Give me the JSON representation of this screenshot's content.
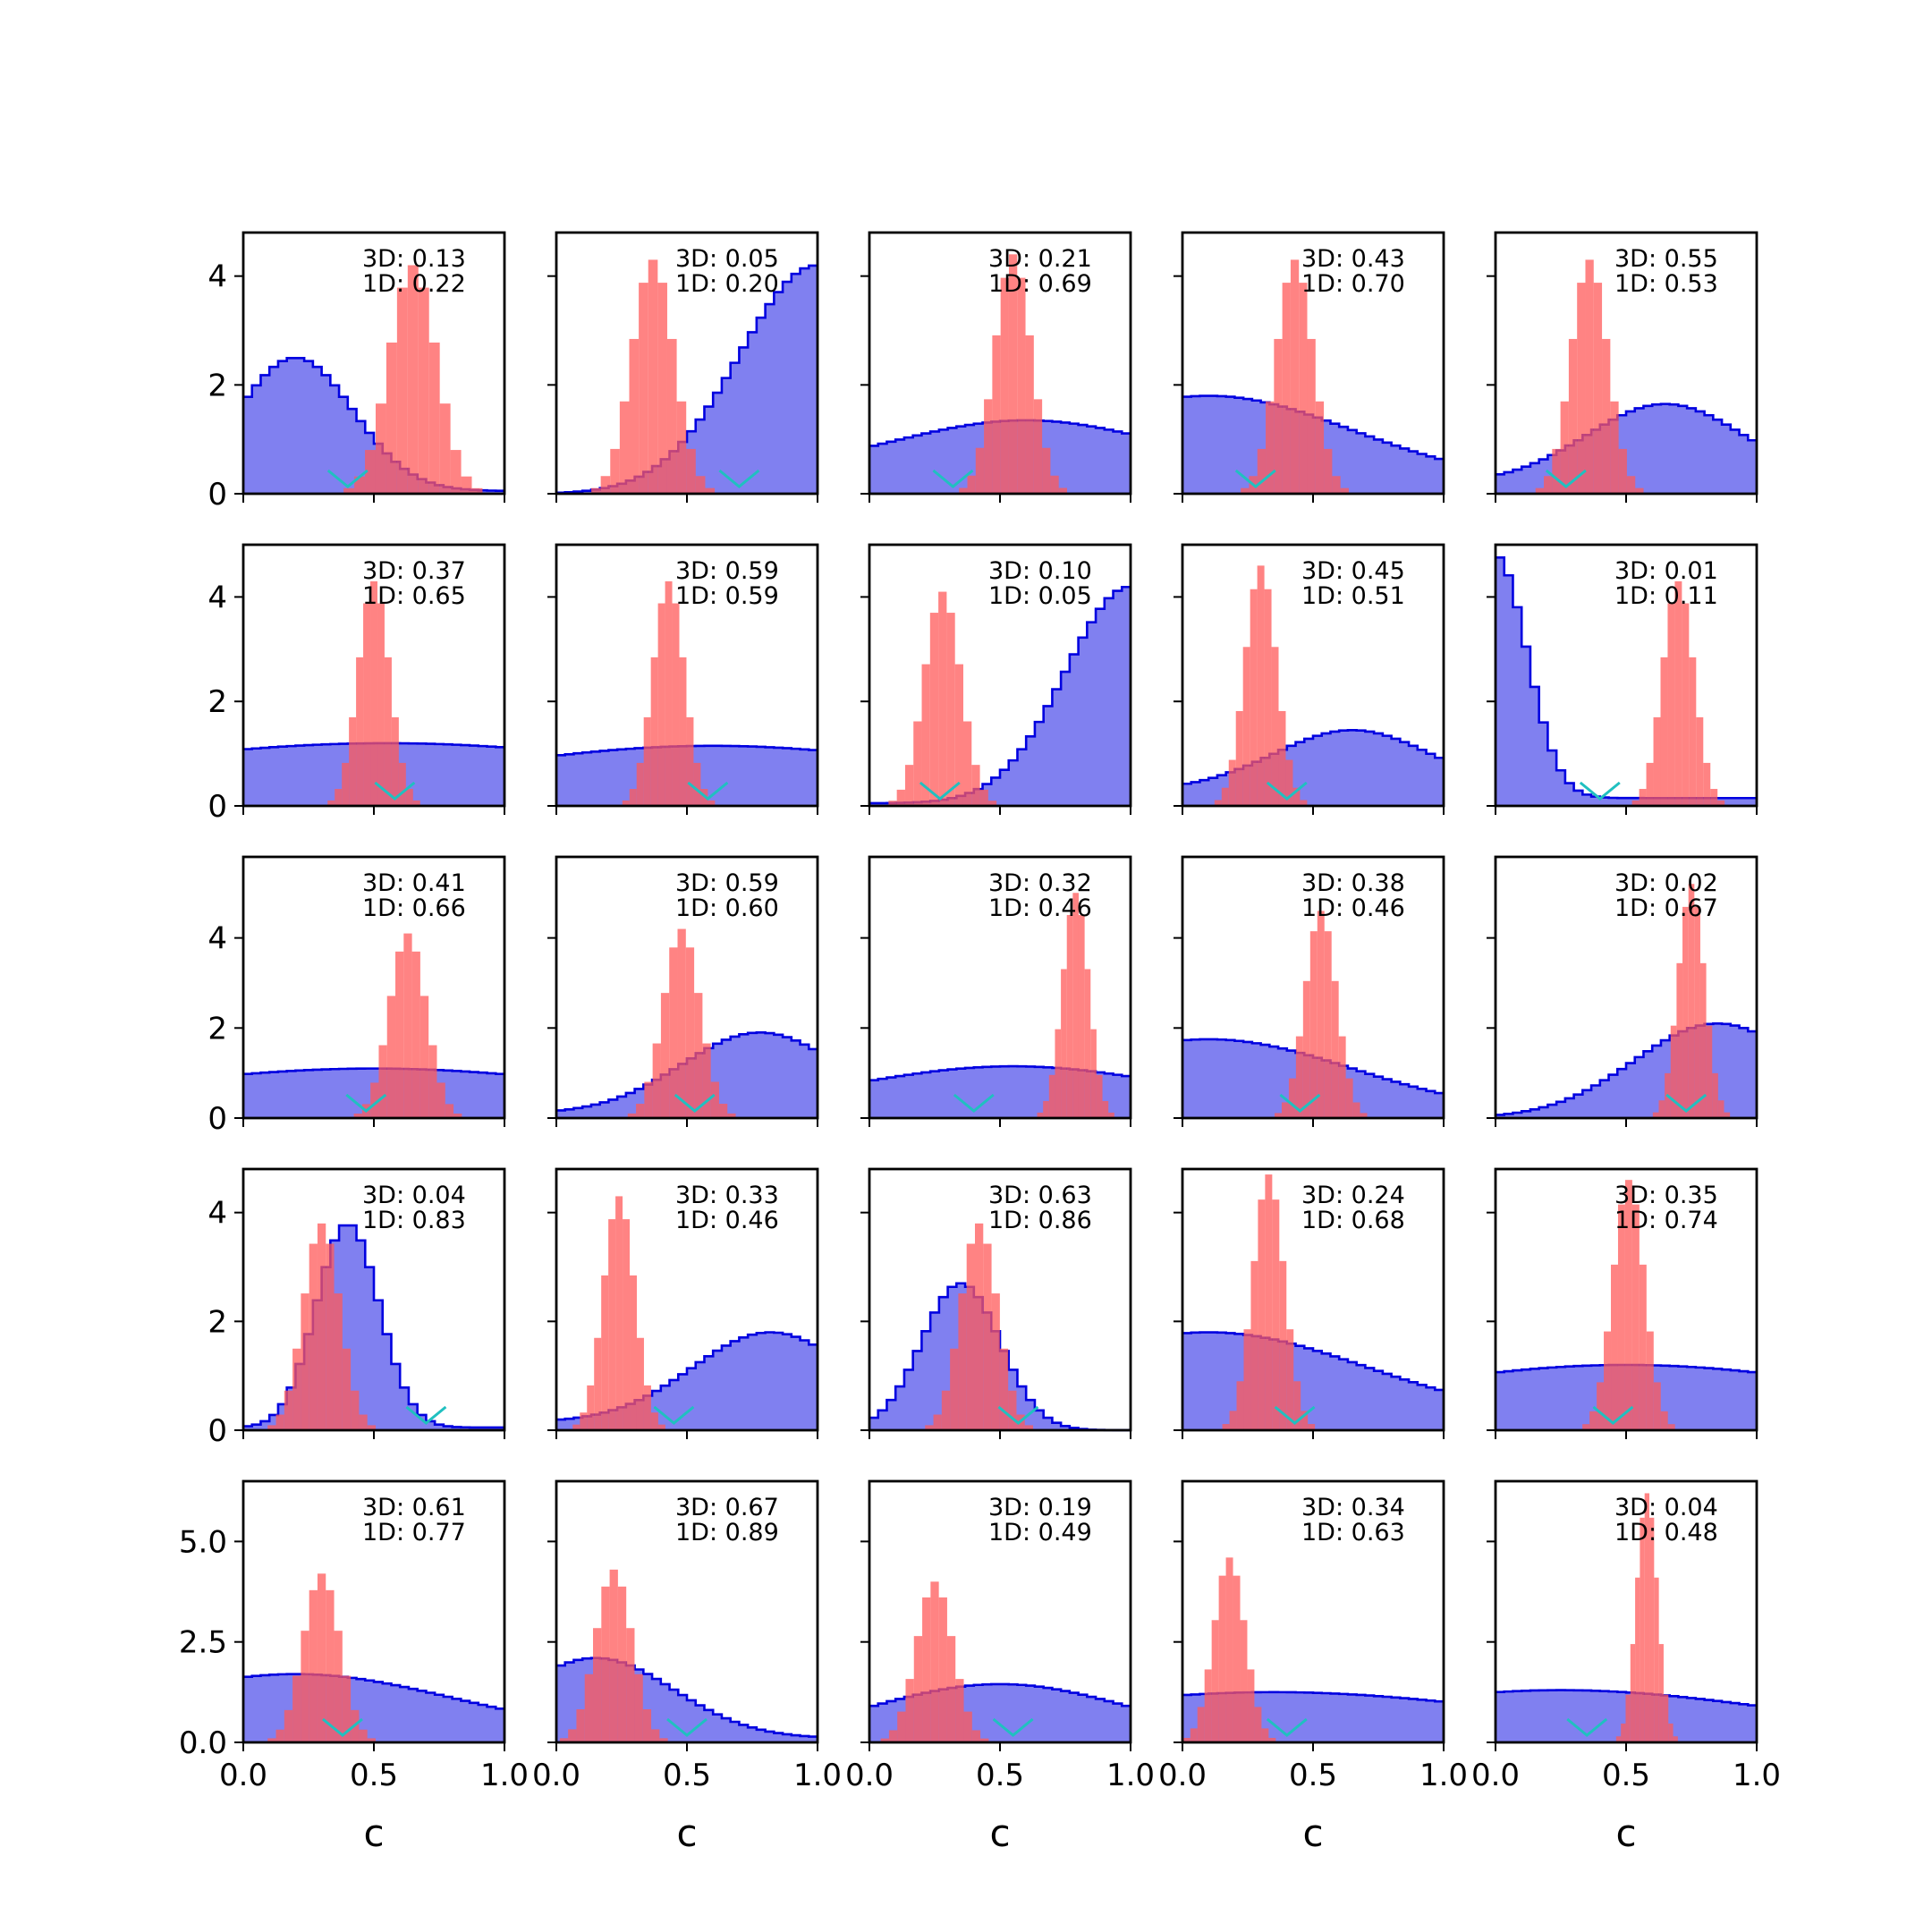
{
  "chart_data": {
    "type": "histogram-grid",
    "rows": 5,
    "cols": 5,
    "xlim": [
      0,
      1
    ],
    "xticks": [
      "0.0",
      "0.5",
      "1.0"
    ],
    "xlabel": "c",
    "row_ylim": [
      [
        0,
        4.8
      ],
      [
        0,
        5.0
      ],
      [
        0,
        5.8
      ],
      [
        0,
        4.8
      ],
      [
        0,
        6.5
      ]
    ],
    "row_yticks": [
      [
        "0",
        "2",
        "4"
      ],
      [
        "0",
        "2",
        "4"
      ],
      [
        "0",
        "2",
        "4"
      ],
      [
        "0",
        "2",
        "4"
      ],
      [
        "0.0",
        "2.5",
        "5.0"
      ]
    ],
    "row_ytick_values": [
      [
        0,
        2,
        4
      ],
      [
        0,
        2,
        4
      ],
      [
        0,
        2,
        4
      ],
      [
        0,
        2,
        4
      ],
      [
        0,
        2.5,
        5.0
      ]
    ],
    "colors": {
      "blue_fill": "#8080f0",
      "blue_line": "#0000e0",
      "red_fill": "#ff5a5a",
      "marker": "#20c0c0"
    },
    "panels": [
      {
        "label_3d": "3D: 0.13",
        "label_1d": "1D: 0.22",
        "blue": {
          "peak": 0.2,
          "width": 0.22,
          "height": 2.5,
          "base": 0.05
        },
        "red": {
          "mean": 0.65,
          "sd": 0.09,
          "height": 4.2
        },
        "marker": 0.4
      },
      {
        "label_3d": "3D: 0.05",
        "label_1d": "1D: 0.20",
        "blue": {
          "peak": 1.0,
          "width": 0.3,
          "height": 4.2,
          "base": 0.0
        },
        "red": {
          "mean": 0.37,
          "sd": 0.08,
          "height": 4.3
        },
        "marker": 0.7
      },
      {
        "label_3d": "3D: 0.21",
        "label_1d": "1D: 0.69",
        "blue": {
          "peak": 0.6,
          "width": 0.5,
          "height": 1.35,
          "base": 0.4
        },
        "red": {
          "mean": 0.55,
          "sd": 0.07,
          "height": 4.4
        },
        "marker": 0.32
      },
      {
        "label_3d": "3D: 0.43",
        "label_1d": "1D: 0.70",
        "blue": {
          "peak": 0.1,
          "width": 0.55,
          "height": 1.8,
          "base": 0.2
        },
        "red": {
          "mean": 0.43,
          "sd": 0.07,
          "height": 4.3
        },
        "marker": 0.28
      },
      {
        "label_3d": "3D: 0.55",
        "label_1d": "1D: 0.53",
        "blue": {
          "peak": 0.65,
          "width": 0.3,
          "height": 1.65,
          "base": 0.2
        },
        "red": {
          "mean": 0.36,
          "sd": 0.07,
          "height": 4.3
        },
        "marker": 0.27
      },
      {
        "label_3d": "3D: 0.37",
        "label_1d": "1D: 0.65",
        "blue": {
          "peak": 0.55,
          "width": 1.2,
          "height": 1.2,
          "base": 0.0
        },
        "red": {
          "mean": 0.5,
          "sd": 0.06,
          "height": 4.3
        },
        "marker": 0.58
      },
      {
        "label_3d": "3D: 0.59",
        "label_1d": "1D: 0.59",
        "blue": {
          "peak": 0.6,
          "width": 1.0,
          "height": 1.15,
          "base": 0.0
        },
        "red": {
          "mean": 0.43,
          "sd": 0.06,
          "height": 4.3
        },
        "marker": 0.58
      },
      {
        "label_3d": "3D: 0.10",
        "label_1d": "1D: 0.05",
        "blue": {
          "peak": 1.0,
          "width": 0.25,
          "height": 4.2,
          "base": 0.05
        },
        "red": {
          "mean": 0.28,
          "sd": 0.07,
          "height": 4.1
        },
        "marker": 0.27
      },
      {
        "label_3d": "3D: 0.45",
        "label_1d": "1D: 0.51",
        "blue": {
          "peak": 0.65,
          "width": 0.3,
          "height": 1.45,
          "base": 0.3
        },
        "red": {
          "mean": 0.3,
          "sd": 0.06,
          "height": 4.6
        },
        "marker": 0.4
      },
      {
        "label_3d": "3D: 0.01",
        "label_1d": "1D: 0.11",
        "blue": {
          "peak": 0.0,
          "width": 0.12,
          "height": 4.8,
          "base": 0.15
        },
        "red": {
          "mean": 0.7,
          "sd": 0.06,
          "height": 4.3
        },
        "marker": 0.4
      },
      {
        "label_3d": "3D: 0.41",
        "label_1d": "1D: 0.66",
        "blue": {
          "peak": 0.5,
          "width": 1.0,
          "height": 1.1,
          "base": 0.0
        },
        "red": {
          "mean": 0.63,
          "sd": 0.07,
          "height": 4.1
        },
        "marker": 0.47
      },
      {
        "label_3d": "3D: 0.59",
        "label_1d": "1D: 0.60",
        "blue": {
          "peak": 0.78,
          "width": 0.3,
          "height": 1.9,
          "base": 0.1
        },
        "red": {
          "mean": 0.48,
          "sd": 0.07,
          "height": 4.2
        },
        "marker": 0.53
      },
      {
        "label_3d": "3D: 0.32",
        "label_1d": "1D: 0.46",
        "blue": {
          "peak": 0.55,
          "width": 0.6,
          "height": 1.15,
          "base": 0.2
        },
        "red": {
          "mean": 0.79,
          "sd": 0.05,
          "height": 5.0
        },
        "marker": 0.4
      },
      {
        "label_3d": "3D: 0.38",
        "label_1d": "1D: 0.46",
        "blue": {
          "peak": 0.1,
          "width": 0.55,
          "height": 1.75,
          "base": 0.1
        },
        "red": {
          "mean": 0.53,
          "sd": 0.06,
          "height": 4.6
        },
        "marker": 0.45
      },
      {
        "label_3d": "3D: 0.02",
        "label_1d": "1D: 0.67",
        "blue": {
          "peak": 0.85,
          "width": 0.32,
          "height": 2.1,
          "base": 0.0
        },
        "red": {
          "mean": 0.75,
          "sd": 0.05,
          "height": 5.2
        },
        "marker": 0.73
      },
      {
        "label_3d": "3D: 0.04",
        "label_1d": "1D: 0.83",
        "blue": {
          "peak": 0.4,
          "width": 0.12,
          "height": 3.8,
          "base": 0.05
        },
        "red": {
          "mean": 0.3,
          "sd": 0.07,
          "height": 3.8
        },
        "marker": 0.7
      },
      {
        "label_3d": "3D: 0.33",
        "label_1d": "1D: 0.46",
        "blue": {
          "peak": 0.82,
          "width": 0.3,
          "height": 1.8,
          "base": 0.15
        },
        "red": {
          "mean": 0.24,
          "sd": 0.06,
          "height": 4.3
        },
        "marker": 0.45
      },
      {
        "label_3d": "3D: 0.63",
        "label_1d": "1D: 0.86",
        "blue": {
          "peak": 0.35,
          "width": 0.15,
          "height": 2.7,
          "base": 0.0
        },
        "red": {
          "mean": 0.42,
          "sd": 0.07,
          "height": 3.8
        },
        "marker": 0.57
      },
      {
        "label_3d": "3D: 0.24",
        "label_1d": "1D: 0.68",
        "blue": {
          "peak": 0.1,
          "width": 0.6,
          "height": 1.8,
          "base": 0.2
        },
        "red": {
          "mean": 0.33,
          "sd": 0.06,
          "height": 4.7
        },
        "marker": 0.43
      },
      {
        "label_3d": "3D: 0.35",
        "label_1d": "1D: 0.74",
        "blue": {
          "peak": 0.5,
          "width": 1.0,
          "height": 1.2,
          "base": 0.0
        },
        "red": {
          "mean": 0.51,
          "sd": 0.06,
          "height": 4.6
        },
        "marker": 0.45
      },
      {
        "label_3d": "3D: 0.61",
        "label_1d": "1D: 0.77",
        "blue": {
          "peak": 0.2,
          "width": 0.6,
          "height": 1.7,
          "base": 0.2
        },
        "red": {
          "mean": 0.3,
          "sd": 0.07,
          "height": 4.2
        },
        "marker": 0.38
      },
      {
        "label_3d": "3D: 0.67",
        "label_1d": "1D: 0.89",
        "blue": {
          "peak": 0.15,
          "width": 0.3,
          "height": 2.1,
          "base": 0.1
        },
        "red": {
          "mean": 0.22,
          "sd": 0.07,
          "height": 4.3
        },
        "marker": 0.5
      },
      {
        "label_3d": "3D: 0.19",
        "label_1d": "1D: 0.49",
        "blue": {
          "peak": 0.5,
          "width": 0.5,
          "height": 1.45,
          "base": 0.0
        },
        "red": {
          "mean": 0.25,
          "sd": 0.07,
          "height": 4.0
        },
        "marker": 0.55
      },
      {
        "label_3d": "3D: 0.34",
        "label_1d": "1D: 0.63",
        "blue": {
          "peak": 0.35,
          "width": 0.9,
          "height": 1.25,
          "base": 0.2
        },
        "red": {
          "mean": 0.18,
          "sd": 0.06,
          "height": 4.6
        },
        "marker": 0.4
      },
      {
        "label_3d": "3D: 0.04",
        "label_1d": "1D: 0.48",
        "blue": {
          "peak": 0.25,
          "width": 0.8,
          "height": 1.3,
          "base": 0.2
        },
        "red": {
          "mean": 0.58,
          "sd": 0.04,
          "height": 6.2
        },
        "marker": 0.35
      }
    ]
  }
}
